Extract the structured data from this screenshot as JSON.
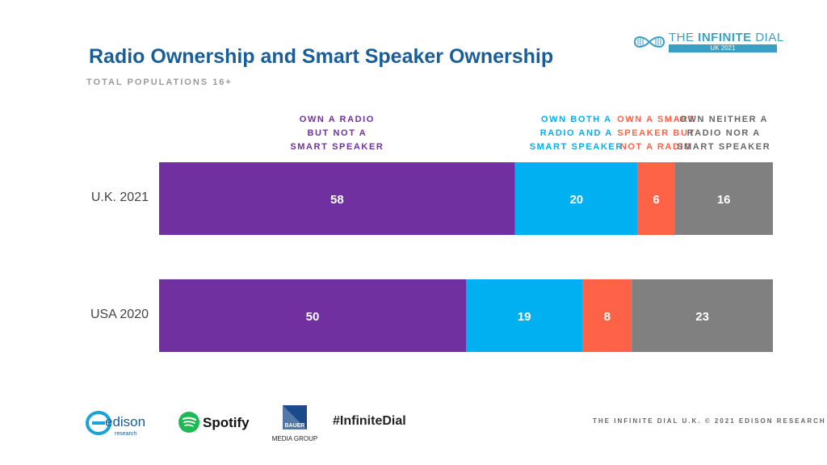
{
  "header": {
    "title": "Radio Ownership and Smart Speaker Ownership",
    "subtitle": "TOTAL POPULATIONS 16+"
  },
  "brand": {
    "name_light": "THE ",
    "name_bold": "INFINITE",
    "name_end": " DIAL",
    "sub": "UK 2021",
    "color": "#3a9fc4"
  },
  "chart_data": {
    "type": "bar",
    "orientation": "horizontal",
    "stacked": true,
    "categories": [
      "U.K. 2021",
      "USA 2020"
    ],
    "series": [
      {
        "name": "OWN A RADIO\nBUT NOT A\nSMART SPEAKER",
        "color": "#7030a0",
        "values": [
          58,
          50
        ]
      },
      {
        "name": "OWN BOTH A\nRADIO AND A\nSMART SPEAKER",
        "color": "#00b0f0",
        "values": [
          20,
          19
        ]
      },
      {
        "name": "OWN A SMART\nSPEAKER BUT\nNOT A RADIO",
        "color": "#ff6347",
        "values": [
          6,
          8
        ]
      },
      {
        "name": "OWN NEITHER A\nRADIO NOR A\nSMART SPEAKER",
        "color": "#808080",
        "values": [
          16,
          23
        ]
      }
    ],
    "legend_position": "top",
    "data_labels": true
  },
  "footer": {
    "note": "THE INFINITE DIAL U.K.  © 2021 EDISON RESEARCH",
    "hashtag": "#InfiniteDial",
    "logos": {
      "edison": "edison",
      "edison_sub": "research",
      "spotify": "Spotify",
      "bauer": "BAUER",
      "bauer_sub": "MEDIA GROUP"
    }
  }
}
